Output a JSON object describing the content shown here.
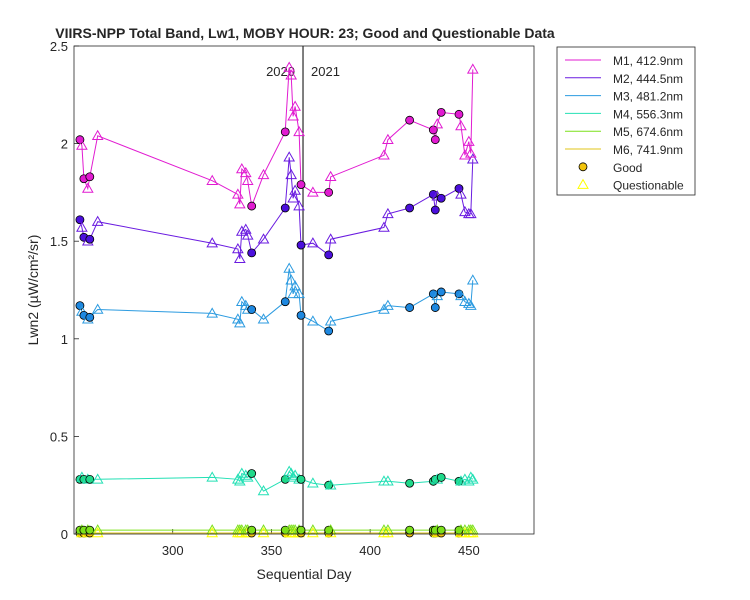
{
  "chart_data": {
    "type": "line",
    "title": "VIIRS-NPP Total Band, Lw1, MOBY HOUR: 23;  Good and Questionable Data",
    "xlabel": "Sequential Day",
    "ylabel": "Lwn2 (µW/cm²/sr)",
    "xlim": [
      250,
      483
    ],
    "ylim": [
      0,
      2.5
    ],
    "xticks": [
      300,
      350,
      400,
      450
    ],
    "yticks": [
      0,
      0.5,
      1,
      1.5,
      2,
      2.5
    ],
    "year_divider": 366,
    "year_labels": [
      "2020",
      "2021"
    ],
    "legend": {
      "location": "outside-top-right",
      "good_label": "Good",
      "questionable_label": "Questionable",
      "good_color": "#F2C40C",
      "questionable_color": "#FFFF00"
    },
    "x": [
      253,
      254,
      255,
      257,
      258,
      262,
      320,
      333,
      334,
      335,
      337,
      338,
      340,
      346,
      357,
      359,
      360,
      361,
      362,
      364,
      365,
      371,
      379,
      380,
      407,
      409,
      420,
      432,
      433,
      434,
      436,
      445,
      446,
      448,
      450,
      451,
      452
    ],
    "quality": [
      "G",
      "Q",
      "G",
      "Q",
      "G",
      "Q",
      "Q",
      "Q",
      "Q",
      "Q",
      "Q",
      "Q",
      "G",
      "Q",
      "G",
      "Q",
      "Q",
      "Q",
      "Q",
      "Q",
      "G",
      "Q",
      "G",
      "Q",
      "Q",
      "Q",
      "G",
      "G",
      "G",
      "Q",
      "G",
      "G",
      "Q",
      "Q",
      "Q",
      "Q",
      "Q"
    ],
    "series": [
      {
        "name": "M1, 412.9nm",
        "color": "#E11BD1",
        "marker_good": "#E11BD1",
        "marker_q": "#E11BD1",
        "values": [
          2.02,
          1.99,
          1.82,
          1.77,
          1.83,
          2.04,
          1.81,
          1.74,
          1.69,
          1.87,
          1.85,
          1.81,
          1.68,
          1.84,
          2.06,
          2.39,
          2.35,
          2.14,
          2.19,
          2.06,
          1.79,
          1.75,
          1.75,
          1.83,
          1.94,
          2.02,
          2.12,
          2.07,
          2.02,
          2.1,
          2.16,
          2.15,
          2.09,
          1.94,
          2.01,
          1.95,
          2.38
        ]
      },
      {
        "name": "M2, 444.5nm",
        "color": "#6A1BE0",
        "marker_good": "#4B0FDC",
        "marker_q": "#6A1BE0",
        "values": [
          1.61,
          1.57,
          1.52,
          1.5,
          1.51,
          1.6,
          1.49,
          1.46,
          1.41,
          1.55,
          1.56,
          1.53,
          1.44,
          1.51,
          1.67,
          1.93,
          1.84,
          1.72,
          1.76,
          1.68,
          1.48,
          1.49,
          1.43,
          1.51,
          1.57,
          1.64,
          1.67,
          1.74,
          1.66,
          1.73,
          1.72,
          1.77,
          1.74,
          1.65,
          1.64,
          1.64,
          1.92
        ]
      },
      {
        "name": "M3, 481.2nm",
        "color": "#2C9BE0",
        "marker_good": "#1E88E0",
        "marker_q": "#2C9BE0",
        "values": [
          1.17,
          1.14,
          1.12,
          1.1,
          1.11,
          1.15,
          1.13,
          1.1,
          1.08,
          1.19,
          1.17,
          1.15,
          1.15,
          1.1,
          1.19,
          1.36,
          1.3,
          1.23,
          1.27,
          1.23,
          1.12,
          1.09,
          1.04,
          1.09,
          1.15,
          1.17,
          1.16,
          1.23,
          1.16,
          1.22,
          1.24,
          1.23,
          1.22,
          1.19,
          1.18,
          1.17,
          1.3
        ]
      },
      {
        "name": "M4, 556.3nm",
        "color": "#24E0B5",
        "marker_good": "#1FD98A",
        "marker_q": "#24E0B5",
        "values": [
          0.28,
          0.29,
          0.28,
          0.28,
          0.28,
          0.28,
          0.29,
          0.28,
          0.27,
          0.31,
          0.3,
          0.29,
          0.31,
          0.22,
          0.28,
          0.32,
          0.31,
          0.29,
          0.3,
          0.28,
          0.28,
          0.26,
          0.25,
          0.25,
          0.27,
          0.27,
          0.26,
          0.27,
          0.28,
          0.28,
          0.29,
          0.27,
          0.27,
          0.28,
          0.27,
          0.29,
          0.28
        ]
      },
      {
        "name": "M5, 674.6nm",
        "color": "#7BE01A",
        "marker_good": "#7BE01A",
        "marker_q": "#7BE01A",
        "values": [
          0.02,
          0.02,
          0.02,
          0.02,
          0.02,
          0.02,
          0.02,
          0.02,
          0.02,
          0.02,
          0.02,
          0.02,
          0.02,
          0.02,
          0.02,
          0.02,
          0.02,
          0.02,
          0.02,
          0.02,
          0.02,
          0.02,
          0.02,
          0.02,
          0.02,
          0.02,
          0.02,
          0.02,
          0.02,
          0.02,
          0.02,
          0.02,
          0.02,
          0.02,
          0.02,
          0.02,
          0.02
        ]
      },
      {
        "name": "M6, 741.9nm",
        "color": "#E0C41A",
        "marker_good": "#F2C40C",
        "marker_q": "#FFFF00",
        "values": [
          0.005,
          0.005,
          0.005,
          0.005,
          0.005,
          0.005,
          0.005,
          0.005,
          0.005,
          0.005,
          0.005,
          0.005,
          0.005,
          0.005,
          0.005,
          0.005,
          0.005,
          0.005,
          0.005,
          0.005,
          0.005,
          0.005,
          0.005,
          0.005,
          0.005,
          0.005,
          0.005,
          0.005,
          0.005,
          0.005,
          0.005,
          0.005,
          0.005,
          0.005,
          0.005,
          0.005,
          0.005
        ]
      }
    ]
  }
}
